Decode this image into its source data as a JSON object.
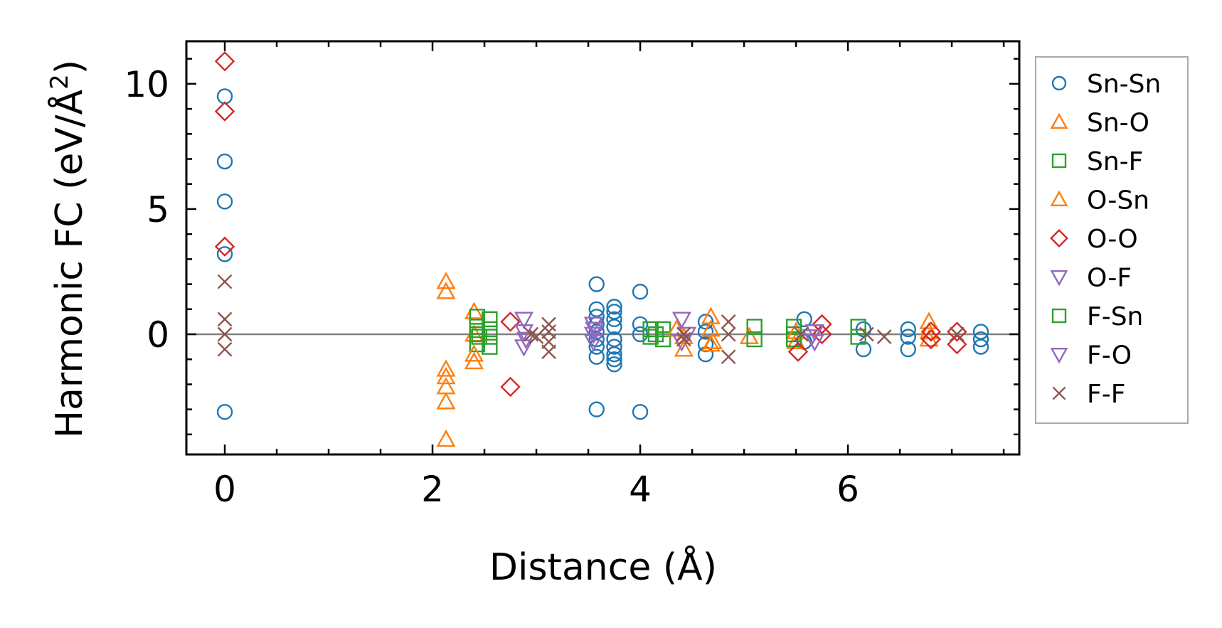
{
  "chart_data": {
    "type": "scatter",
    "title": "",
    "xlabel": "Distance (Å)",
    "ylabel": "Harmonic FC (eV/Å²)",
    "ylabel_base": "Harmonic FC (eV/Å",
    "ylabel_sup": "2",
    "ylabel_close": ")",
    "xlim": [
      -0.37,
      7.65
    ],
    "ylim": [
      -4.8,
      11.7
    ],
    "xticks": [
      0,
      2,
      4,
      6
    ],
    "xtick_labels": [
      "0",
      "2",
      "4",
      "6"
    ],
    "yticks": [
      0,
      5,
      10
    ],
    "ytick_labels": [
      "0",
      "5",
      "10"
    ],
    "x_minor_step": 0.5,
    "y_minor_step": 1,
    "zero_line": true,
    "grid": false,
    "legend_position": "outside-right",
    "series": [
      {
        "name": "Sn-Sn",
        "marker": "circle",
        "color": "#1f77b4",
        "points": [
          [
            0,
            9.5
          ],
          [
            0,
            6.9
          ],
          [
            0,
            5.3
          ],
          [
            0,
            3.2
          ],
          [
            0,
            -3.1
          ],
          [
            3.58,
            2.0
          ],
          [
            3.58,
            1.0
          ],
          [
            3.58,
            0.7
          ],
          [
            3.58,
            0.4
          ],
          [
            3.58,
            0.1
          ],
          [
            3.58,
            -0.2
          ],
          [
            3.58,
            -0.5
          ],
          [
            3.58,
            -0.9
          ],
          [
            3.58,
            -3.0
          ],
          [
            3.75,
            1.1
          ],
          [
            3.75,
            0.9
          ],
          [
            3.75,
            0.6
          ],
          [
            3.75,
            0.3
          ],
          [
            3.75,
            -0.2
          ],
          [
            3.75,
            -0.5
          ],
          [
            3.75,
            -0.8
          ],
          [
            3.75,
            -1.0
          ],
          [
            3.75,
            -1.2
          ],
          [
            4.0,
            1.7
          ],
          [
            4.0,
            0.4
          ],
          [
            4.0,
            0.0
          ],
          [
            4.0,
            -3.1
          ],
          [
            4.63,
            0.5
          ],
          [
            4.63,
            0.1
          ],
          [
            4.63,
            -0.4
          ],
          [
            4.63,
            -0.8
          ],
          [
            5.58,
            0.6
          ],
          [
            5.58,
            -0.3
          ],
          [
            6.15,
            0.2
          ],
          [
            6.15,
            -0.6
          ],
          [
            6.58,
            0.2
          ],
          [
            6.58,
            -0.1
          ],
          [
            6.58,
            -0.6
          ],
          [
            7.28,
            0.1
          ],
          [
            7.28,
            -0.2
          ],
          [
            7.28,
            -0.5
          ]
        ]
      },
      {
        "name": "Sn-O",
        "marker": "triangle-up",
        "color": "#ff7f0e",
        "points": [
          [
            2.13,
            2.1
          ],
          [
            2.13,
            1.7
          ],
          [
            2.13,
            -1.4
          ],
          [
            2.13,
            -1.7
          ],
          [
            2.13,
            -2.1
          ],
          [
            2.13,
            -2.7
          ],
          [
            2.13,
            -4.2
          ],
          [
            2.4,
            0.9
          ],
          [
            2.4,
            0.0
          ],
          [
            2.4,
            -1.1
          ],
          [
            4.42,
            -0.1
          ],
          [
            4.42,
            -0.6
          ],
          [
            4.68,
            0.7
          ],
          [
            4.68,
            0.2
          ],
          [
            4.68,
            -0.4
          ],
          [
            5.05,
            -0.1
          ],
          [
            5.5,
            -0.3
          ],
          [
            6.78,
            0.5
          ],
          [
            6.78,
            -0.2
          ]
        ]
      },
      {
        "name": "Sn-F",
        "marker": "square",
        "color": "#2ca02c",
        "points": [
          [
            2.43,
            0.7
          ],
          [
            2.43,
            0.3
          ],
          [
            2.43,
            0.0
          ],
          [
            2.43,
            -0.4
          ],
          [
            2.55,
            0.6
          ],
          [
            2.55,
            0.2
          ],
          [
            2.55,
            -0.1
          ],
          [
            2.55,
            -0.5
          ],
          [
            4.1,
            0.2
          ],
          [
            4.1,
            -0.1
          ],
          [
            4.22,
            0.2
          ],
          [
            4.22,
            -0.2
          ],
          [
            5.1,
            0.3
          ],
          [
            5.1,
            -0.2
          ],
          [
            5.48,
            0.3
          ],
          [
            5.48,
            -0.2
          ],
          [
            6.1,
            0.3
          ],
          [
            6.1,
            -0.1
          ]
        ]
      },
      {
        "name": "O-Sn",
        "marker": "triangle-up",
        "color": "#ff7f0e",
        "points": [
          [
            2.4,
            -0.8
          ],
          [
            4.35,
            0.2
          ],
          [
            4.7,
            -0.3
          ],
          [
            5.5,
            0.1
          ],
          [
            6.78,
            0.1
          ]
        ]
      },
      {
        "name": "O-O",
        "marker": "diamond",
        "color": "#d62728",
        "points": [
          [
            0,
            10.9
          ],
          [
            0,
            8.9
          ],
          [
            0,
            3.5
          ],
          [
            2.75,
            0.5
          ],
          [
            2.75,
            -2.1
          ],
          [
            5.52,
            -0.7
          ],
          [
            5.75,
            0.4
          ],
          [
            5.75,
            0.0
          ],
          [
            6.8,
            0.1
          ],
          [
            6.8,
            -0.2
          ],
          [
            7.05,
            0.1
          ],
          [
            7.05,
            -0.4
          ]
        ]
      },
      {
        "name": "O-F",
        "marker": "triangle-down",
        "color": "#9467bd",
        "points": [
          [
            2.88,
            0.6
          ],
          [
            2.88,
            0.1
          ],
          [
            2.88,
            -0.5
          ],
          [
            3.55,
            0.4
          ],
          [
            3.55,
            0.0
          ],
          [
            3.55,
            -0.3
          ],
          [
            4.4,
            0.6
          ],
          [
            4.4,
            -0.3
          ],
          [
            5.68,
            0.1
          ],
          [
            5.68,
            -0.3
          ]
        ]
      },
      {
        "name": "F-Sn",
        "marker": "square",
        "color": "#2ca02c",
        "points": [
          [
            2.45,
            -0.1
          ],
          [
            4.15,
            0.0
          ],
          [
            5.48,
            0.0
          ]
        ]
      },
      {
        "name": "F-O",
        "marker": "triangle-down",
        "color": "#9467bd",
        "points": [
          [
            2.9,
            -0.2
          ],
          [
            3.56,
            0.2
          ],
          [
            4.45,
            0.0
          ],
          [
            5.65,
            -0.1
          ]
        ]
      },
      {
        "name": "F-F",
        "marker": "x",
        "color": "#8c564b",
        "points": [
          [
            0,
            2.1
          ],
          [
            0,
            0.6
          ],
          [
            0,
            0.0
          ],
          [
            0,
            -0.6
          ],
          [
            2.95,
            0.0
          ],
          [
            3.0,
            -0.1
          ],
          [
            3.12,
            0.4
          ],
          [
            3.12,
            0.1
          ],
          [
            3.12,
            -0.3
          ],
          [
            3.12,
            -0.7
          ],
          [
            4.42,
            0.0
          ],
          [
            4.42,
            -0.2
          ],
          [
            4.85,
            0.5
          ],
          [
            4.85,
            0.0
          ],
          [
            4.85,
            -0.9
          ],
          [
            5.55,
            0.0
          ],
          [
            6.18,
            0.0
          ],
          [
            6.35,
            -0.1
          ],
          [
            7.05,
            0.0
          ]
        ]
      }
    ]
  }
}
